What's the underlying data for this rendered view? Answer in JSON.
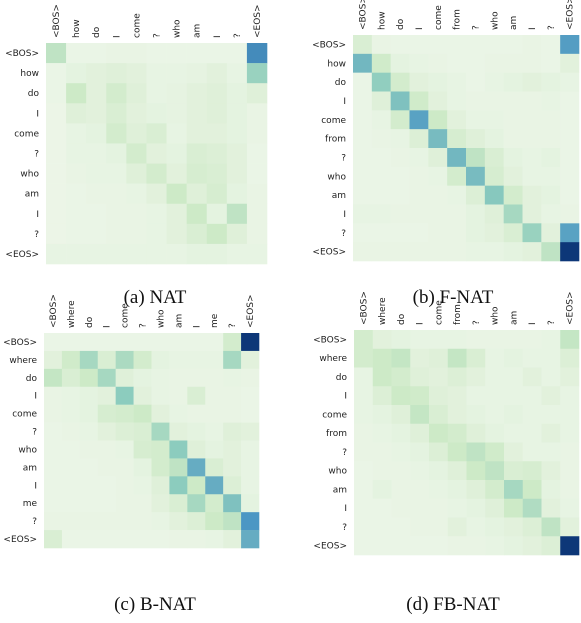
{
  "chart_data": [
    {
      "type": "heatmap",
      "caption": "(a) NAT",
      "rows": [
        "<BOS>",
        "how",
        "do",
        "I",
        "come",
        "?",
        "who",
        "am",
        "I",
        "?",
        "<EOS>"
      ],
      "cols": [
        "<BOS>",
        "how",
        "do",
        "I",
        "come",
        "?",
        "who",
        "am",
        "I",
        "?",
        "<EOS>"
      ],
      "values": [
        [
          0.3,
          0.04,
          0.04,
          0.05,
          0.05,
          0.04,
          0.04,
          0.04,
          0.04,
          0.04,
          0.78
        ],
        [
          0.04,
          0.08,
          0.1,
          0.12,
          0.1,
          0.06,
          0.06,
          0.07,
          0.1,
          0.06,
          0.45
        ],
        [
          0.04,
          0.24,
          0.1,
          0.2,
          0.12,
          0.06,
          0.07,
          0.1,
          0.12,
          0.08,
          0.12
        ],
        [
          0.03,
          0.12,
          0.1,
          0.16,
          0.1,
          0.08,
          0.07,
          0.1,
          0.12,
          0.08,
          0.05
        ],
        [
          0.03,
          0.06,
          0.08,
          0.2,
          0.12,
          0.16,
          0.06,
          0.1,
          0.1,
          0.08,
          0.05
        ],
        [
          0.03,
          0.06,
          0.06,
          0.08,
          0.2,
          0.1,
          0.08,
          0.16,
          0.14,
          0.1,
          0.04
        ],
        [
          0.03,
          0.05,
          0.06,
          0.06,
          0.12,
          0.2,
          0.1,
          0.18,
          0.16,
          0.1,
          0.04
        ],
        [
          0.03,
          0.04,
          0.05,
          0.05,
          0.06,
          0.1,
          0.24,
          0.12,
          0.18,
          0.08,
          0.05
        ],
        [
          0.03,
          0.04,
          0.04,
          0.05,
          0.05,
          0.06,
          0.1,
          0.24,
          0.08,
          0.3,
          0.05
        ],
        [
          0.03,
          0.04,
          0.04,
          0.05,
          0.05,
          0.06,
          0.1,
          0.16,
          0.24,
          0.12,
          0.05
        ],
        [
          0.06,
          0.06,
          0.06,
          0.06,
          0.06,
          0.06,
          0.06,
          0.08,
          0.08,
          0.06,
          0.06
        ]
      ]
    },
    {
      "type": "heatmap",
      "caption": "(b) F-NAT",
      "rows": [
        "<BOS>",
        "how",
        "do",
        "I",
        "come",
        "from",
        "?",
        "who",
        "am",
        "I",
        "?",
        "<EOS>"
      ],
      "cols": [
        "<BOS>",
        "how",
        "do",
        "I",
        "come",
        "from",
        "?",
        "who",
        "am",
        "I",
        "?",
        "<EOS>"
      ],
      "values": [
        [
          0.16,
          0.05,
          0.04,
          0.04,
          0.04,
          0.04,
          0.04,
          0.04,
          0.04,
          0.05,
          0.04,
          0.72
        ],
        [
          0.6,
          0.22,
          0.08,
          0.06,
          0.05,
          0.04,
          0.04,
          0.05,
          0.05,
          0.05,
          0.04,
          0.1
        ],
        [
          0.04,
          0.48,
          0.2,
          0.1,
          0.08,
          0.06,
          0.04,
          0.06,
          0.08,
          0.1,
          0.08,
          0.06
        ],
        [
          0.04,
          0.12,
          0.55,
          0.22,
          0.1,
          0.06,
          0.05,
          0.05,
          0.05,
          0.05,
          0.06,
          0.04
        ],
        [
          0.04,
          0.06,
          0.2,
          0.7,
          0.24,
          0.1,
          0.06,
          0.06,
          0.05,
          0.05,
          0.05,
          0.04
        ],
        [
          0.04,
          0.05,
          0.06,
          0.14,
          0.58,
          0.18,
          0.12,
          0.08,
          0.05,
          0.05,
          0.05,
          0.04
        ],
        [
          0.04,
          0.04,
          0.05,
          0.06,
          0.12,
          0.6,
          0.3,
          0.16,
          0.08,
          0.06,
          0.08,
          0.04
        ],
        [
          0.04,
          0.04,
          0.04,
          0.05,
          0.06,
          0.2,
          0.58,
          0.18,
          0.1,
          0.06,
          0.06,
          0.04
        ],
        [
          0.04,
          0.04,
          0.04,
          0.05,
          0.05,
          0.06,
          0.14,
          0.52,
          0.2,
          0.1,
          0.08,
          0.04
        ],
        [
          0.06,
          0.06,
          0.05,
          0.05,
          0.05,
          0.05,
          0.08,
          0.12,
          0.4,
          0.1,
          0.06,
          0.05
        ],
        [
          0.04,
          0.04,
          0.04,
          0.04,
          0.05,
          0.05,
          0.08,
          0.1,
          0.16,
          0.45,
          0.1,
          0.7
        ],
        [
          0.05,
          0.05,
          0.05,
          0.05,
          0.05,
          0.05,
          0.06,
          0.06,
          0.08,
          0.1,
          0.3,
          1.0
        ]
      ]
    },
    {
      "type": "heatmap",
      "caption": "(c) B-NAT",
      "rows": [
        "<BOS>",
        "where",
        "do",
        "I",
        "come",
        "?",
        "who",
        "am",
        "I",
        "me",
        "?",
        "<EOS>"
      ],
      "cols": [
        "<BOS>",
        "where",
        "do",
        "I",
        "come",
        "?",
        "who",
        "am",
        "I",
        "me",
        "?",
        "<EOS>"
      ],
      "values": [
        [
          0.04,
          0.04,
          0.04,
          0.04,
          0.04,
          0.04,
          0.04,
          0.04,
          0.04,
          0.04,
          0.2,
          1.0
        ],
        [
          0.1,
          0.22,
          0.4,
          0.16,
          0.38,
          0.2,
          0.08,
          0.06,
          0.06,
          0.06,
          0.4,
          0.1
        ],
        [
          0.28,
          0.16,
          0.24,
          0.4,
          0.12,
          0.08,
          0.06,
          0.05,
          0.05,
          0.05,
          0.06,
          0.05
        ],
        [
          0.05,
          0.06,
          0.08,
          0.1,
          0.5,
          0.1,
          0.06,
          0.05,
          0.16,
          0.05,
          0.05,
          0.04
        ],
        [
          0.05,
          0.06,
          0.08,
          0.18,
          0.2,
          0.24,
          0.1,
          0.06,
          0.05,
          0.05,
          0.05,
          0.04
        ],
        [
          0.04,
          0.05,
          0.06,
          0.1,
          0.14,
          0.16,
          0.4,
          0.1,
          0.08,
          0.06,
          0.12,
          0.1
        ],
        [
          0.04,
          0.04,
          0.05,
          0.05,
          0.06,
          0.18,
          0.2,
          0.5,
          0.12,
          0.08,
          0.1,
          0.06
        ],
        [
          0.04,
          0.04,
          0.04,
          0.05,
          0.05,
          0.08,
          0.2,
          0.3,
          0.65,
          0.16,
          0.1,
          0.06
        ],
        [
          0.04,
          0.04,
          0.04,
          0.04,
          0.05,
          0.06,
          0.12,
          0.5,
          0.24,
          0.65,
          0.14,
          0.06
        ],
        [
          0.04,
          0.04,
          0.04,
          0.04,
          0.05,
          0.05,
          0.1,
          0.16,
          0.4,
          0.2,
          0.55,
          0.08
        ],
        [
          0.05,
          0.05,
          0.05,
          0.05,
          0.05,
          0.05,
          0.06,
          0.1,
          0.14,
          0.24,
          0.3,
          0.75
        ],
        [
          0.16,
          0.04,
          0.04,
          0.04,
          0.04,
          0.04,
          0.04,
          0.05,
          0.05,
          0.06,
          0.1,
          0.65
        ]
      ]
    },
    {
      "type": "heatmap",
      "caption": "(d) FB-NAT",
      "rows": [
        "<BOS>",
        "where",
        "do",
        "I",
        "come",
        "from",
        "?",
        "who",
        "am",
        "I",
        "?",
        "<EOS>"
      ],
      "cols": [
        "<BOS>",
        "where",
        "do",
        "I",
        "come",
        "from",
        "?",
        "who",
        "am",
        "I",
        "?",
        "<EOS>"
      ],
      "values": [
        [
          0.2,
          0.1,
          0.08,
          0.06,
          0.06,
          0.06,
          0.05,
          0.05,
          0.05,
          0.05,
          0.06,
          0.28
        ],
        [
          0.2,
          0.24,
          0.28,
          0.1,
          0.12,
          0.28,
          0.16,
          0.06,
          0.08,
          0.06,
          0.06,
          0.14
        ],
        [
          0.06,
          0.24,
          0.2,
          0.12,
          0.1,
          0.14,
          0.1,
          0.06,
          0.06,
          0.1,
          0.06,
          0.1
        ],
        [
          0.06,
          0.14,
          0.24,
          0.22,
          0.12,
          0.1,
          0.06,
          0.06,
          0.06,
          0.06,
          0.1,
          0.06
        ],
        [
          0.06,
          0.08,
          0.12,
          0.28,
          0.16,
          0.1,
          0.08,
          0.06,
          0.08,
          0.06,
          0.06,
          0.06
        ],
        [
          0.05,
          0.06,
          0.08,
          0.12,
          0.24,
          0.2,
          0.12,
          0.08,
          0.06,
          0.06,
          0.1,
          0.06
        ],
        [
          0.05,
          0.05,
          0.06,
          0.08,
          0.14,
          0.24,
          0.3,
          0.22,
          0.1,
          0.06,
          0.06,
          0.05
        ],
        [
          0.04,
          0.05,
          0.05,
          0.06,
          0.08,
          0.12,
          0.24,
          0.3,
          0.16,
          0.18,
          0.1,
          0.05
        ],
        [
          0.04,
          0.08,
          0.05,
          0.05,
          0.06,
          0.08,
          0.12,
          0.2,
          0.4,
          0.24,
          0.08,
          0.05
        ],
        [
          0.04,
          0.04,
          0.05,
          0.05,
          0.05,
          0.06,
          0.08,
          0.12,
          0.24,
          0.36,
          0.1,
          0.06
        ],
        [
          0.04,
          0.04,
          0.04,
          0.05,
          0.05,
          0.1,
          0.06,
          0.08,
          0.1,
          0.14,
          0.3,
          0.1
        ],
        [
          0.04,
          0.04,
          0.04,
          0.04,
          0.04,
          0.05,
          0.05,
          0.06,
          0.08,
          0.1,
          0.14,
          1.0
        ]
      ]
    }
  ]
}
